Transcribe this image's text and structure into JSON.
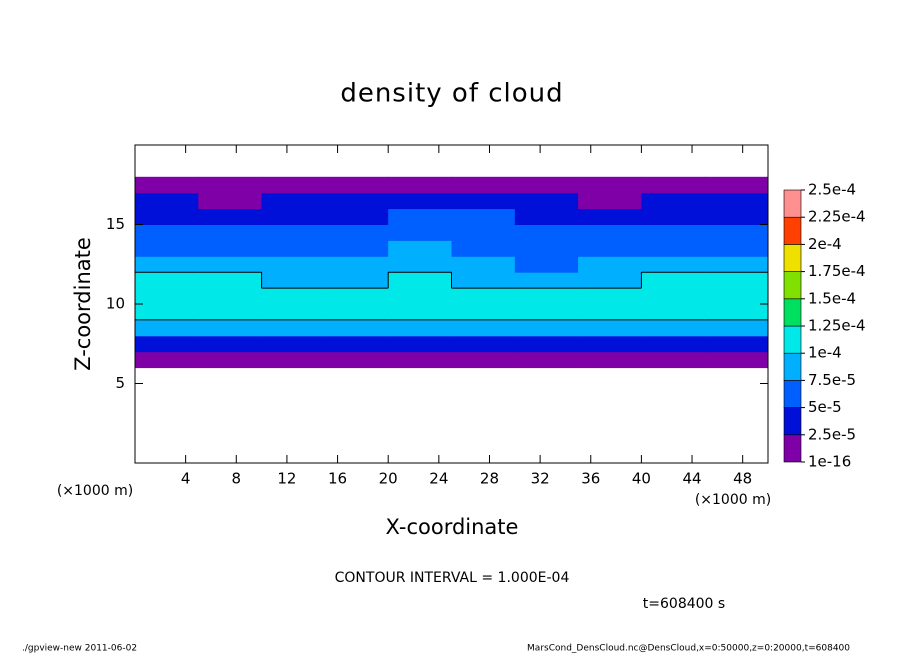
{
  "chart_data": {
    "type": "contour",
    "title": "density of cloud",
    "xlabel": "X-coordinate",
    "ylabel": "Z-coordinate",
    "x_unit": "(×1000 m)",
    "contour_interval_label": "CONTOUR INTERVAL = 1.000E-04",
    "contour_interval": 0.0001,
    "time_label": "t=608400 s",
    "xlim": [
      0,
      50
    ],
    "ylim": [
      0,
      20
    ],
    "xticks": [
      4,
      8,
      12,
      16,
      20,
      24,
      28,
      32,
      36,
      40,
      44,
      48
    ],
    "yticks": [
      5,
      10,
      15
    ],
    "x": [
      2.5,
      7.5,
      12.5,
      17.5,
      22.5,
      27.5,
      32.5,
      37.5,
      42.5,
      47.5
    ],
    "z": [
      6.5,
      7.5,
      8.5,
      9.5,
      10.5,
      11.5,
      12.5,
      13.5,
      14.5,
      15.5,
      16.5,
      17.5
    ],
    "values": [
      [
        1.5e-05,
        1.2e-05,
        1.5e-05,
        1.3e-05,
        1.6e-05,
        1.2e-05,
        1.5e-05,
        1.4e-05,
        1.3e-05,
        1.5e-05
      ],
      [
        4.5e-05,
        4e-05,
        4.5e-05,
        4.2e-05,
        3.5e-05,
        4.5e-05,
        4e-05,
        4.5e-05,
        4.2e-05,
        4.5e-05
      ],
      [
        9.5e-05,
        9e-05,
        8.5e-05,
        8.5e-05,
        8e-05,
        9e-05,
        9.5e-05,
        9e-05,
        8.5e-05,
        9.5e-05
      ],
      [
        0.000115,
        0.00011,
        0.000115,
        0.00011,
        0.000105,
        0.00011,
        0.000115,
        0.00011,
        0.00011,
        0.000115
      ],
      [
        0.00012,
        0.000115,
        0.00012,
        0.00012,
        0.000115,
        0.000115,
        0.00012,
        0.000115,
        0.000115,
        0.00012
      ],
      [
        0.00011,
        0.0001,
        9.5e-05,
        9.5e-05,
        0.000105,
        9e-05,
        9e-05,
        9.5e-05,
        0.0001,
        0.00011
      ],
      [
        8.5e-05,
        8e-05,
        7.5e-05,
        7.5e-05,
        9e-05,
        7.5e-05,
        7e-05,
        7.5e-05,
        8e-05,
        9e-05
      ],
      [
        7e-05,
        6.5e-05,
        6.5e-05,
        6e-05,
        8e-05,
        7e-05,
        6e-05,
        6e-05,
        6.5e-05,
        7e-05
      ],
      [
        6e-05,
        5.5e-05,
        5.5e-05,
        5.5e-05,
        6.5e-05,
        6.5e-05,
        5.5e-05,
        5e-05,
        5.5e-05,
        6e-05
      ],
      [
        4.5e-05,
        4e-05,
        4e-05,
        4.5e-05,
        5e-05,
        5.5e-05,
        4.5e-05,
        4e-05,
        4e-05,
        4.5e-05
      ],
      [
        2.5e-05,
        2e-05,
        2.5e-05,
        2.5e-05,
        3e-05,
        3e-05,
        2.5e-05,
        2e-05,
        2.5e-05,
        2.5e-05
      ],
      [
        8e-06,
        6e-06,
        8e-06,
        1e-05,
        1e-05,
        1.2e-05,
        1e-05,
        8e-06,
        6e-06,
        8e-06
      ]
    ],
    "colorbar": {
      "ticks": [
        {
          "value": 1e-16,
          "label": "1e-16"
        },
        {
          "value": 2.5e-05,
          "label": "2.5e-5"
        },
        {
          "value": 5e-05,
          "label": "5e-5"
        },
        {
          "value": 7.5e-05,
          "label": "7.5e-5"
        },
        {
          "value": 0.0001,
          "label": "1e-4"
        },
        {
          "value": 0.000125,
          "label": "1.25e-4"
        },
        {
          "value": 0.00015,
          "label": "1.5e-4"
        },
        {
          "value": 0.000175,
          "label": "1.75e-4"
        },
        {
          "value": 0.0002,
          "label": "2e-4"
        },
        {
          "value": 0.000225,
          "label": "2.25e-4"
        },
        {
          "value": 0.00025,
          "label": "2.5e-4"
        }
      ],
      "colors": [
        "#8000a8",
        "#0010d8",
        "#0060ff",
        "#00b0ff",
        "#00e8e8",
        "#00e060",
        "#80e000",
        "#f0e000",
        "#ff4000",
        "#ff9090"
      ]
    }
  },
  "footer": {
    "left": "./gpview-new  2011-06-02",
    "right": "MarsCond_DensCloud.nc@DensCloud,x=0:50000,z=0:20000,t=608400"
  }
}
